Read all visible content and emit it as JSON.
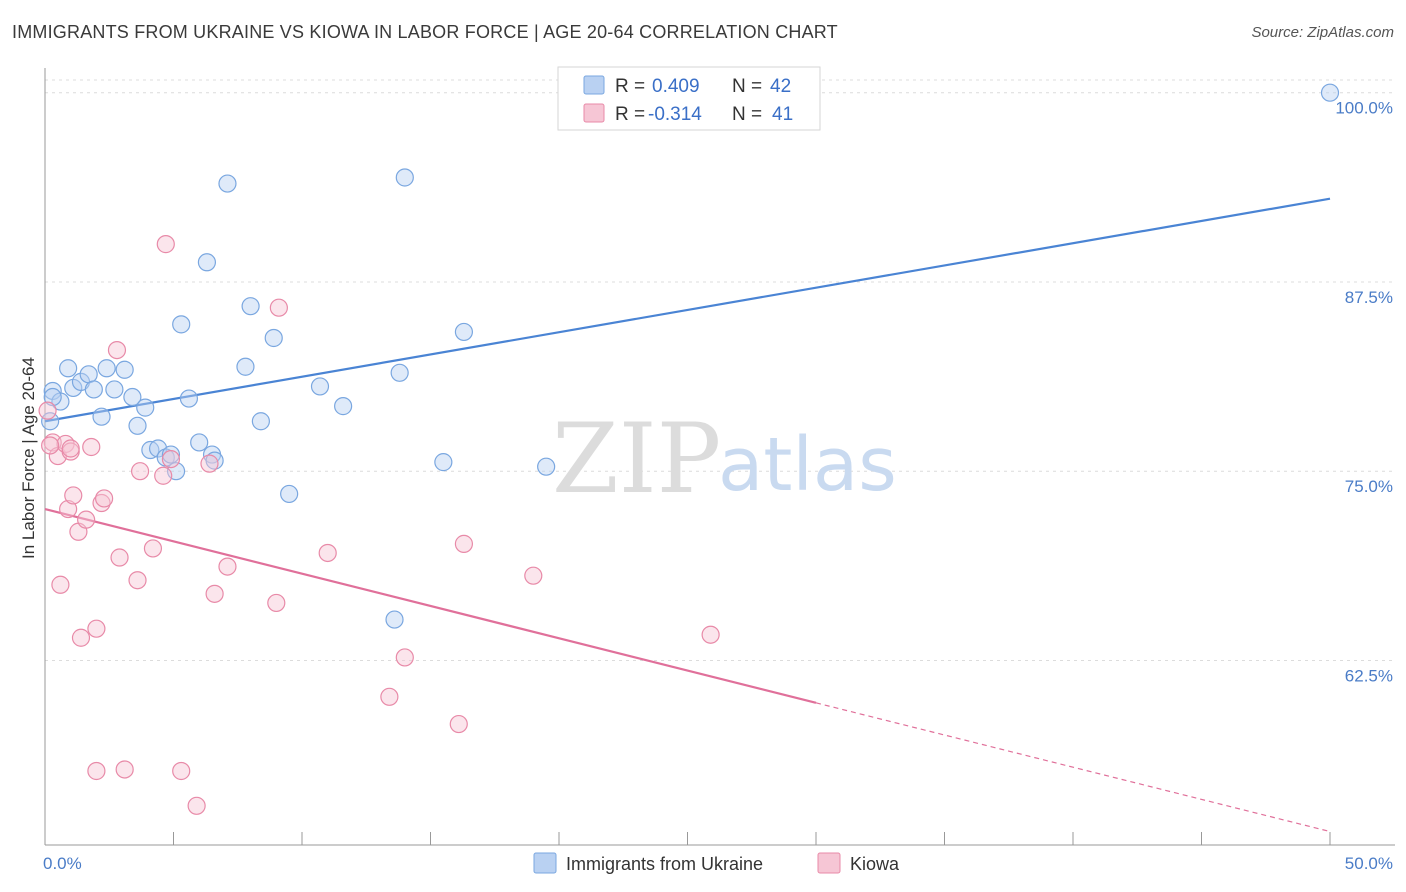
{
  "header": {
    "title": "IMMIGRANTS FROM UKRAINE VS KIOWA IN LABOR FORCE | AGE 20-64 CORRELATION CHART",
    "source": "Source: ZipAtlas.com"
  },
  "watermark": {
    "zip": "ZIP",
    "atlas": "atlas"
  },
  "legend": {
    "r_label": "R =",
    "n_label": "N =",
    "series": [
      {
        "name": "Immigrants from Ukraine",
        "r": "0.409",
        "n": "42",
        "color": "#7aa7e0",
        "fill": "#b9d1f2"
      },
      {
        "name": "Kiowa",
        "r": "-0.314",
        "n": "41",
        "color": "#e88aa8",
        "fill": "#f6c6d5"
      }
    ]
  },
  "chart_data": {
    "type": "scatter",
    "title": "IMMIGRANTS FROM UKRAINE VS KIOWA IN LABOR FORCE | AGE 20-64 CORRELATION CHART",
    "xlabel": "",
    "ylabel": "In Labor Force | Age 20-64",
    "xlim": [
      0,
      50
    ],
    "ylim": [
      51.5,
      101.5
    ],
    "x_tick_labels": [
      "0.0%",
      "50.0%"
    ],
    "y_ticks": [
      62.5,
      75.0,
      87.5,
      100.0
    ],
    "y_tick_labels": [
      "62.5%",
      "75.0%",
      "87.5%",
      "100.0%"
    ],
    "grid": "horizontal dashed",
    "legend_position": "top-center",
    "series": [
      {
        "name": "Immigrants from Ukraine",
        "color": "#4a84d4",
        "points": [
          [
            0.3,
            80.3
          ],
          [
            0.6,
            79.6
          ],
          [
            0.9,
            81.8
          ],
          [
            1.1,
            80.5
          ],
          [
            1.4,
            80.9
          ],
          [
            1.7,
            81.4
          ],
          [
            1.9,
            80.4
          ],
          [
            2.2,
            78.6
          ],
          [
            2.4,
            81.8
          ],
          [
            2.7,
            80.4
          ],
          [
            3.1,
            81.7
          ],
          [
            3.4,
            79.9
          ],
          [
            3.6,
            78.0
          ],
          [
            3.9,
            79.2
          ],
          [
            4.1,
            76.4
          ],
          [
            4.4,
            76.5
          ],
          [
            4.7,
            75.9
          ],
          [
            4.9,
            76.1
          ],
          [
            5.1,
            75.0
          ],
          [
            5.3,
            84.7
          ],
          [
            5.6,
            79.8
          ],
          [
            6.0,
            76.9
          ],
          [
            6.3,
            88.8
          ],
          [
            6.5,
            76.1
          ],
          [
            6.6,
            75.7
          ],
          [
            7.1,
            94.0
          ],
          [
            7.8,
            81.9
          ],
          [
            8.4,
            78.3
          ],
          [
            8.0,
            85.9
          ],
          [
            8.9,
            83.8
          ],
          [
            9.5,
            73.5
          ],
          [
            10.7,
            80.6
          ],
          [
            11.6,
            79.3
          ],
          [
            13.6,
            65.2
          ],
          [
            13.8,
            81.5
          ],
          [
            14.0,
            94.4
          ],
          [
            15.5,
            75.6
          ],
          [
            16.3,
            84.2
          ],
          [
            19.5,
            75.3
          ],
          [
            50.0,
            100.0
          ],
          [
            0.2,
            78.3
          ],
          [
            0.3,
            79.9
          ]
        ],
        "trend": {
          "x": [
            0,
            50
          ],
          "y": [
            78.3,
            93.0
          ]
        }
      },
      {
        "name": "Kiowa",
        "color": "#e0709a",
        "points": [
          [
            0.1,
            79.0
          ],
          [
            0.3,
            76.9
          ],
          [
            0.5,
            76.0
          ],
          [
            0.6,
            67.5
          ],
          [
            0.8,
            76.8
          ],
          [
            0.9,
            72.5
          ],
          [
            1.0,
            76.3
          ],
          [
            1.1,
            73.4
          ],
          [
            1.3,
            71.0
          ],
          [
            1.4,
            64.0
          ],
          [
            1.6,
            71.8
          ],
          [
            1.8,
            76.6
          ],
          [
            2.0,
            64.6
          ],
          [
            2.0,
            55.2
          ],
          [
            2.2,
            72.9
          ],
          [
            2.3,
            73.2
          ],
          [
            2.8,
            83.0
          ],
          [
            2.9,
            69.3
          ],
          [
            3.1,
            55.3
          ],
          [
            3.6,
            67.8
          ],
          [
            3.7,
            75.0
          ],
          [
            4.2,
            69.9
          ],
          [
            4.6,
            74.7
          ],
          [
            4.7,
            90.0
          ],
          [
            4.9,
            75.8
          ],
          [
            5.3,
            55.2
          ],
          [
            5.9,
            52.9
          ],
          [
            6.4,
            75.5
          ],
          [
            6.6,
            66.9
          ],
          [
            7.1,
            68.7
          ],
          [
            9.0,
            66.3
          ],
          [
            9.1,
            85.8
          ],
          [
            11.0,
            69.6
          ],
          [
            13.4,
            60.1
          ],
          [
            14.0,
            62.7
          ],
          [
            16.1,
            58.3
          ],
          [
            16.3,
            70.2
          ],
          [
            19.0,
            68.1
          ],
          [
            25.9,
            64.2
          ],
          [
            1.0,
            76.5
          ],
          [
            0.2,
            76.7
          ]
        ],
        "trend": {
          "x": [
            0,
            30
          ],
          "y": [
            72.5,
            59.7
          ]
        },
        "trend_dashed": {
          "x": [
            30,
            50
          ],
          "y": [
            59.7,
            51.2
          ]
        }
      }
    ]
  }
}
